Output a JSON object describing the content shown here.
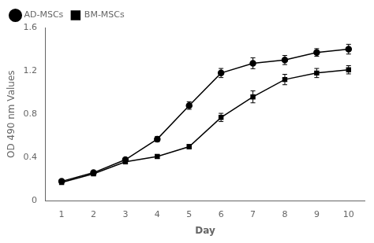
{
  "chart_data": {
    "type": "line",
    "xlabel": "Day",
    "ylabel": "OD 490 nm Values",
    "x": [
      1,
      2,
      3,
      4,
      5,
      6,
      7,
      8,
      9,
      10
    ],
    "series": [
      {
        "name": "AD-MSCs",
        "color": "#000000",
        "marker": "circle",
        "values": [
          0.18,
          0.26,
          0.38,
          0.57,
          0.88,
          1.18,
          1.27,
          1.3,
          1.37,
          1.4
        ],
        "errors": [
          0.015,
          0.015,
          0.018,
          0.025,
          0.035,
          0.042,
          0.05,
          0.042,
          0.035,
          0.045
        ]
      },
      {
        "name": "BM-MSCs",
        "color": "#000000",
        "marker": "square",
        "values": [
          0.17,
          0.25,
          0.36,
          0.41,
          0.5,
          0.77,
          0.96,
          1.12,
          1.18,
          1.21
        ],
        "errors": [
          0.013,
          0.013,
          0.018,
          0.018,
          0.02,
          0.038,
          0.055,
          0.048,
          0.042,
          0.038
        ]
      }
    ],
    "xlim": [
      0.5,
      10.5
    ],
    "xticks": [
      1,
      2,
      3,
      4,
      5,
      6,
      7,
      8,
      9,
      10
    ],
    "ylim": [
      0,
      1.6
    ],
    "yticks": [
      0,
      0.4,
      0.8,
      1.2,
      1.6
    ],
    "grid": false,
    "legend": "upper left"
  }
}
